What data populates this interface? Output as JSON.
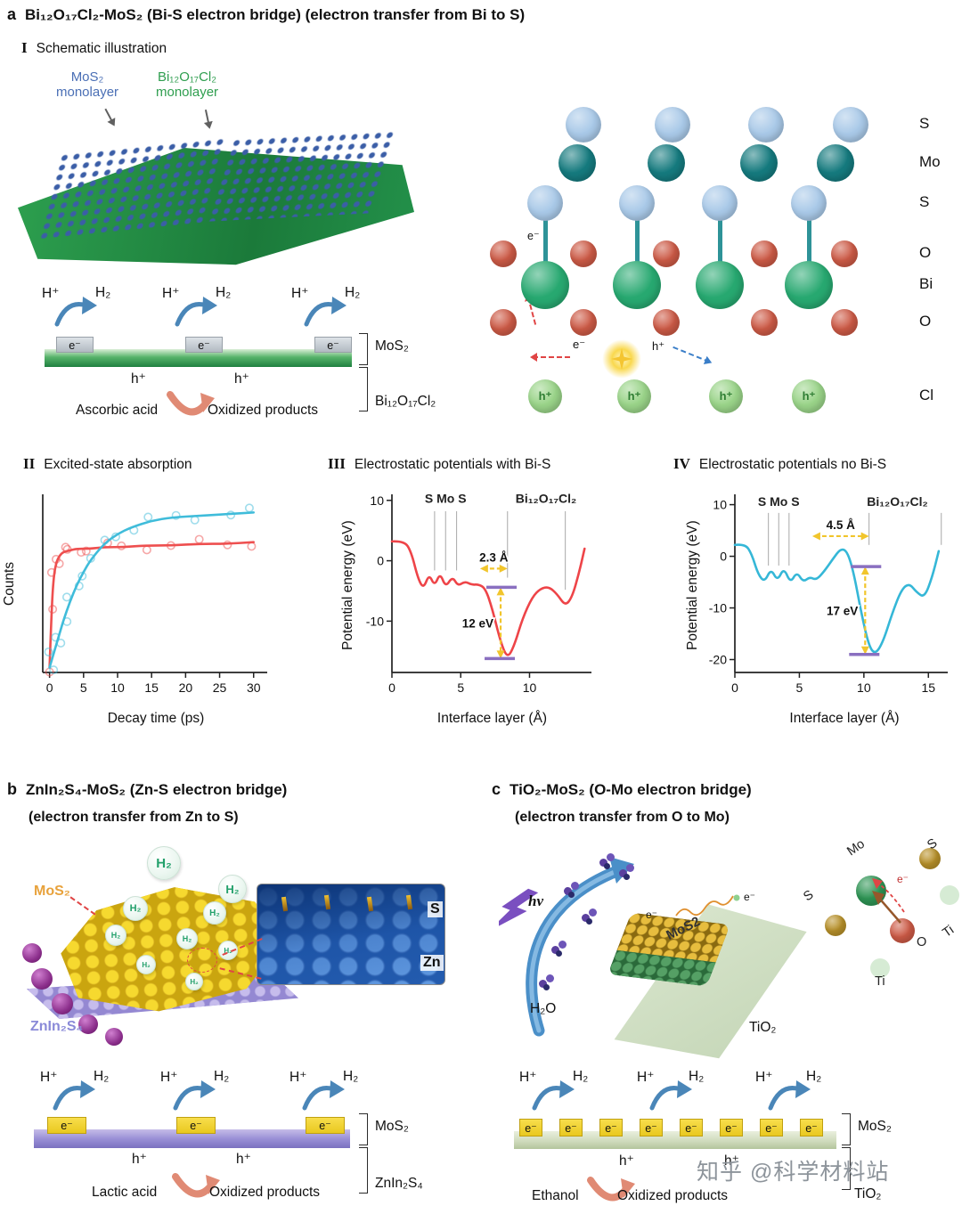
{
  "common": {
    "h_plus": "H⁺",
    "h2": "H₂",
    "e_minus": "e⁻",
    "h_plus_small": "h⁺"
  },
  "watermark": "知乎 @科学材料站",
  "panel_a": {
    "label": "a",
    "title": "Bi₁₂O₁₇Cl₂-MoS₂ (Bi-S electron bridge) (electron transfer from Bi to S)",
    "section": {
      "numeral": "I",
      "title": "Schematic illustration"
    },
    "illustration": {
      "mos2": "MoS₂",
      "mos2_sub": "monolayer",
      "bioc": "Bi₁₂O₁₇Cl₂",
      "bioc_sub": "monolayer"
    },
    "lattice": {
      "row_labels": [
        "S",
        "Mo",
        "S",
        "O",
        "Bi",
        "O",
        "Cl"
      ],
      "hole": "h⁺",
      "electron": "e⁻",
      "colors": {
        "S": "#a9c9e8",
        "Mo": "#157a7e",
        "O": "#cc5a46",
        "Bi": "#27a870",
        "Cl": "#9ad489"
      }
    },
    "scheme": {
      "mos2": "MoS₂",
      "substrate": "Bi₁₂O₁₇Cl₂",
      "donor": "Ascorbic acid",
      "product": "Oxidized products"
    }
  },
  "panel_ii": {
    "numeral": "II"
  },
  "panel_iii": {
    "numeral": "III"
  },
  "panel_iv": {
    "numeral": "IV"
  },
  "chart_data": [
    {
      "type": "line",
      "title": "Excited-state absorption",
      "xlabel": "Decay time (ps)",
      "ylabel": "Counts",
      "xlim": [
        -1,
        32
      ],
      "ylim": [
        0,
        1.08
      ],
      "x_ticks": [
        0,
        5,
        10,
        15,
        20,
        25,
        30
      ],
      "y_ticks": [],
      "series": [
        {
          "name": "fast-rise component (red)",
          "color": "#ee4f4f",
          "scatter": true,
          "x": [
            0,
            0.3,
            0.6,
            1,
            1.5,
            2,
            3,
            4,
            6,
            8,
            11,
            14,
            18,
            22,
            26,
            30
          ],
          "y": [
            0.03,
            0.38,
            0.58,
            0.67,
            0.71,
            0.73,
            0.74,
            0.75,
            0.75,
            0.76,
            0.76,
            0.77,
            0.77,
            0.78,
            0.78,
            0.79
          ]
        },
        {
          "name": "slow-rise component (cyan)",
          "color": "#3fbcda",
          "scatter": true,
          "x": [
            0,
            0.5,
            1,
            1.5,
            2,
            3,
            4,
            5,
            6,
            8,
            10,
            12,
            15,
            18,
            22,
            26,
            30
          ],
          "y": [
            0.03,
            0.1,
            0.17,
            0.24,
            0.31,
            0.43,
            0.53,
            0.61,
            0.68,
            0.78,
            0.84,
            0.88,
            0.92,
            0.94,
            0.95,
            0.96,
            0.97
          ]
        }
      ]
    },
    {
      "type": "line",
      "title": "Electrostatic potentials with Bi-S",
      "xlabel": "Interface layer (Å)",
      "ylabel": "Potential energy (eV)",
      "xlim": [
        0,
        14.5
      ],
      "ylim": [
        -18.5,
        11
      ],
      "x_ticks": [
        0,
        5,
        10
      ],
      "y_ticks": [
        10,
        0,
        -10
      ],
      "series": [
        {
          "name": "with Bi-S bridge",
          "color": "#ee4448",
          "x": [
            0,
            0.9,
            1.4,
            1.9,
            2.3,
            2.7,
            3.1,
            3.5,
            3.9,
            4.4,
            4.8,
            5.3,
            5.8,
            6.3,
            6.8,
            7.3,
            7.9,
            8.4,
            8.9,
            9.5,
            10.2,
            10.8,
            11.4,
            12.0,
            12.6,
            13.1,
            13.6,
            14.0
          ],
          "y": [
            3.2,
            3.3,
            1.5,
            -3.0,
            -4.6,
            -2.2,
            -4.2,
            -2.0,
            -4.4,
            -2.6,
            -4.2,
            -3.4,
            -4.0,
            -3.9,
            -4.6,
            -8.0,
            -13.5,
            -16.2,
            -14.0,
            -9.5,
            -6.0,
            -4.6,
            -4.3,
            -5.5,
            -7.5,
            -6.0,
            -2.0,
            2.0
          ]
        }
      ],
      "annotations": [
        {
          "type": "text",
          "x": 3.9,
          "y": 9.6,
          "label": "S Mo S"
        },
        {
          "type": "text",
          "x": 11.2,
          "y": 9.6,
          "label": "Bi₁₂O₁₇Cl₂"
        },
        {
          "type": "dropline",
          "x": 3.1,
          "y1": 8.2,
          "y2": -1.6
        },
        {
          "type": "dropline",
          "x": 3.9,
          "y1": 8.2,
          "y2": -1.6
        },
        {
          "type": "dropline",
          "x": 4.7,
          "y1": 8.2,
          "y2": -1.6
        },
        {
          "type": "dropline",
          "x": 8.4,
          "y1": 8.2,
          "y2": -2.8
        },
        {
          "type": "dropline",
          "x": 12.6,
          "y1": 8.2,
          "y2": -4.8
        },
        {
          "type": "harrow",
          "x1": 6.4,
          "x2": 8.4,
          "y": -1.3,
          "label": "2.3 Å"
        },
        {
          "type": "varrow",
          "x": 7.9,
          "y1": -4.4,
          "y2": -16.2,
          "label": "12 eV"
        }
      ]
    },
    {
      "type": "line",
      "title": "Electrostatic potentials no Bi-S",
      "xlabel": "Interface layer (Å)",
      "ylabel": "Potential energy (eV)",
      "xlim": [
        0,
        16.5
      ],
      "ylim": [
        -22.5,
        12
      ],
      "x_ticks": [
        0,
        5,
        10,
        15
      ],
      "y_ticks": [
        10,
        0,
        -10,
        -20
      ],
      "series": [
        {
          "name": "no Bi-S bridge",
          "color": "#35b7d7",
          "x": [
            0,
            0.8,
            1.3,
            1.8,
            2.3,
            2.8,
            3.3,
            3.8,
            4.3,
            4.8,
            5.3,
            5.8,
            6.3,
            6.9,
            7.6,
            8.2,
            8.7,
            9.2,
            9.8,
            10.4,
            10.9,
            11.5,
            12.2,
            12.9,
            13.5,
            14.1,
            14.7,
            15.3,
            15.8
          ],
          "y": [
            2.2,
            2.4,
            0.5,
            -3.5,
            -5.0,
            -2.4,
            -4.8,
            -2.2,
            -5.2,
            -3.0,
            -5.0,
            -4.0,
            -4.6,
            -3.0,
            -0.5,
            1.5,
            1.0,
            -3.0,
            -11.0,
            -17.5,
            -19.0,
            -16.5,
            -11.0,
            -6.5,
            -5.2,
            -7.0,
            -8.0,
            -4.0,
            1.0
          ]
        }
      ],
      "annotations": [
        {
          "type": "text",
          "x": 3.4,
          "y": 9.8,
          "label": "S Mo S"
        },
        {
          "type": "text",
          "x": 12.6,
          "y": 9.8,
          "label": "Bi₁₂O₁₇Cl₂"
        },
        {
          "type": "dropline",
          "x": 2.6,
          "y1": 8.4,
          "y2": -1.8
        },
        {
          "type": "dropline",
          "x": 3.4,
          "y1": 8.4,
          "y2": -1.8
        },
        {
          "type": "dropline",
          "x": 4.2,
          "y1": 8.4,
          "y2": -1.8
        },
        {
          "type": "dropline",
          "x": 10.4,
          "y1": 8.4,
          "y2": 2.2
        },
        {
          "type": "dropline",
          "x": 16.0,
          "y1": 8.4,
          "y2": 2.2
        },
        {
          "type": "harrow",
          "x1": 6.0,
          "x2": 10.4,
          "y": 3.9,
          "label": "4.5 Å"
        },
        {
          "type": "varrow",
          "x": 10.1,
          "y1": -2.0,
          "y2": -19.0,
          "label": "17 eV"
        }
      ]
    }
  ],
  "panel_b": {
    "label": "b",
    "title": "ZnIn₂S₄-MoS₂ (Zn-S electron bridge)",
    "subtitle": "(electron transfer from Zn to S)",
    "illustration": {
      "mos2": "MoS₂",
      "znins": "ZnIn₂S₄",
      "inset_s": "S",
      "inset_zn": "Zn"
    },
    "scheme": {
      "mos2": "MoS₂",
      "substrate": "ZnIn₂S₄",
      "donor": "Lactic acid",
      "product": "Oxidized products"
    }
  },
  "panel_c": {
    "label": "c",
    "title": "TiO₂-MoS₂ (O-Mo electron bridge)",
    "subtitle": "(electron transfer from O to Mo)",
    "illustration": {
      "hv": "hν",
      "h2o": "H₂O",
      "mos2": "MoS2",
      "tio2": "TiO₂",
      "electron": "e⁻"
    },
    "diagram": {
      "s_top": "S",
      "mo": "Mo",
      "s_left": "S",
      "o": "O",
      "ti_right": "Ti",
      "ti_bottom": "Ti",
      "electron": "e⁻"
    },
    "scheme": {
      "mos2": "MoS₂",
      "substrate": "TiO₂",
      "donor": "Ethanol",
      "product": "Oxidized products"
    }
  }
}
